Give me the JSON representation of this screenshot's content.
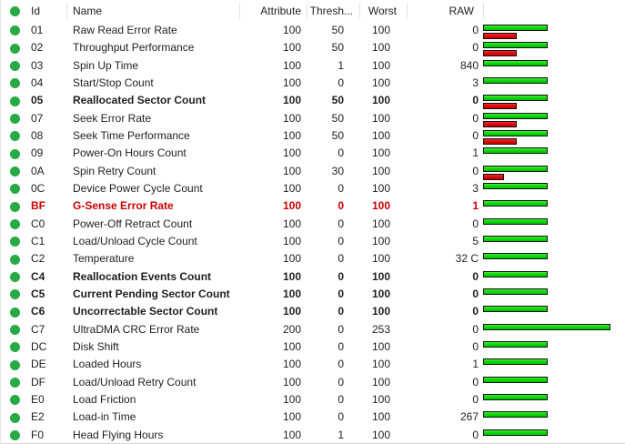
{
  "colors": {
    "dot_green": "#27aa45",
    "bar_green": "#00d400",
    "bar_red": "#d40000",
    "alert_text": "#cc0000"
  },
  "table": {
    "columns": {
      "id": "Id",
      "name": "Name",
      "attribute": "Attribute",
      "threshold": "Thresh...",
      "worst": "Worst",
      "raw": "RAW"
    },
    "rows": [
      {
        "id": "01",
        "name": "Raw Read Error Rate",
        "attribute": 100,
        "threshold": 50,
        "worst": 100,
        "raw": "0",
        "style": "normal"
      },
      {
        "id": "02",
        "name": "Throughput Performance",
        "attribute": 100,
        "threshold": 50,
        "worst": 100,
        "raw": "0",
        "style": "normal"
      },
      {
        "id": "03",
        "name": "Spin Up Time",
        "attribute": 100,
        "threshold": 1,
        "worst": 100,
        "raw": "840",
        "style": "normal"
      },
      {
        "id": "04",
        "name": "Start/Stop Count",
        "attribute": 100,
        "threshold": 0,
        "worst": 100,
        "raw": "3",
        "style": "normal"
      },
      {
        "id": "05",
        "name": "Reallocated Sector Count",
        "attribute": 100,
        "threshold": 50,
        "worst": 100,
        "raw": "0",
        "style": "bold"
      },
      {
        "id": "07",
        "name": "Seek Error Rate",
        "attribute": 100,
        "threshold": 50,
        "worst": 100,
        "raw": "0",
        "style": "normal"
      },
      {
        "id": "08",
        "name": "Seek Time Performance",
        "attribute": 100,
        "threshold": 50,
        "worst": 100,
        "raw": "0",
        "style": "normal"
      },
      {
        "id": "09",
        "name": "Power-On Hours Count",
        "attribute": 100,
        "threshold": 0,
        "worst": 100,
        "raw": "1",
        "style": "normal"
      },
      {
        "id": "0A",
        "name": "Spin Retry Count",
        "attribute": 100,
        "threshold": 30,
        "worst": 100,
        "raw": "0",
        "style": "normal"
      },
      {
        "id": "0C",
        "name": "Device Power Cycle Count",
        "attribute": 100,
        "threshold": 0,
        "worst": 100,
        "raw": "3",
        "style": "normal"
      },
      {
        "id": "BF",
        "name": "G-Sense Error Rate",
        "attribute": 100,
        "threshold": 0,
        "worst": 100,
        "raw": "1",
        "style": "alert"
      },
      {
        "id": "C0",
        "name": "Power-Off Retract Count",
        "attribute": 100,
        "threshold": 0,
        "worst": 100,
        "raw": "0",
        "style": "normal"
      },
      {
        "id": "C1",
        "name": "Load/Unload Cycle Count",
        "attribute": 100,
        "threshold": 0,
        "worst": 100,
        "raw": "5",
        "style": "normal"
      },
      {
        "id": "C2",
        "name": "Temperature",
        "attribute": 100,
        "threshold": 0,
        "worst": 100,
        "raw": "32 C",
        "style": "normal"
      },
      {
        "id": "C4",
        "name": "Reallocation Events Count",
        "attribute": 100,
        "threshold": 0,
        "worst": 100,
        "raw": "0",
        "style": "bold"
      },
      {
        "id": "C5",
        "name": "Current Pending Sector Count",
        "attribute": 100,
        "threshold": 0,
        "worst": 100,
        "raw": "0",
        "style": "bold"
      },
      {
        "id": "C6",
        "name": "Uncorrectable Sector Count",
        "attribute": 100,
        "threshold": 0,
        "worst": 100,
        "raw": "0",
        "style": "bold"
      },
      {
        "id": "C7",
        "name": "UltraDMA CRC Error Rate",
        "attribute": 200,
        "threshold": 0,
        "worst": 253,
        "raw": "0",
        "style": "normal"
      },
      {
        "id": "DC",
        "name": "Disk Shift",
        "attribute": 100,
        "threshold": 0,
        "worst": 100,
        "raw": "0",
        "style": "normal"
      },
      {
        "id": "DE",
        "name": "Loaded Hours",
        "attribute": 100,
        "threshold": 0,
        "worst": 100,
        "raw": "1",
        "style": "normal"
      },
      {
        "id": "DF",
        "name": "Load/Unload Retry Count",
        "attribute": 100,
        "threshold": 0,
        "worst": 100,
        "raw": "0",
        "style": "normal"
      },
      {
        "id": "E0",
        "name": "Load Friction",
        "attribute": 100,
        "threshold": 0,
        "worst": 100,
        "raw": "0",
        "style": "normal"
      },
      {
        "id": "E2",
        "name": "Load-in Time",
        "attribute": 100,
        "threshold": 0,
        "worst": 100,
        "raw": "267",
        "style": "normal"
      },
      {
        "id": "F0",
        "name": "Head Flying Hours",
        "attribute": 100,
        "threshold": 1,
        "worst": 100,
        "raw": "0",
        "style": "normal"
      }
    ]
  }
}
